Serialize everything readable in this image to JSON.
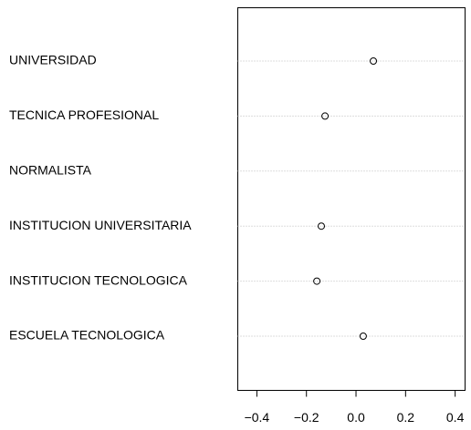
{
  "chart_data": {
    "type": "dot",
    "categories": [
      "UNIVERSIDAD",
      "TECNICA PROFESIONAL",
      "NORMALISTA",
      "INSTITUCION UNIVERSITARIA",
      "INSTITUCION TECNOLOGICA",
      "ESCUELA TECNOLOGICA"
    ],
    "values": [
      0.07,
      -0.125,
      null,
      -0.14,
      -0.158,
      0.029
    ],
    "color": "#000000",
    "xlim": [
      -0.477,
      0.44
    ],
    "xticks": [
      {
        "value": -0.4,
        "label": "−0.4"
      },
      {
        "value": -0.2,
        "label": "−0.2"
      },
      {
        "value": 0.0,
        "label": "0.0"
      },
      0.2,
      0.4
    ]
  }
}
